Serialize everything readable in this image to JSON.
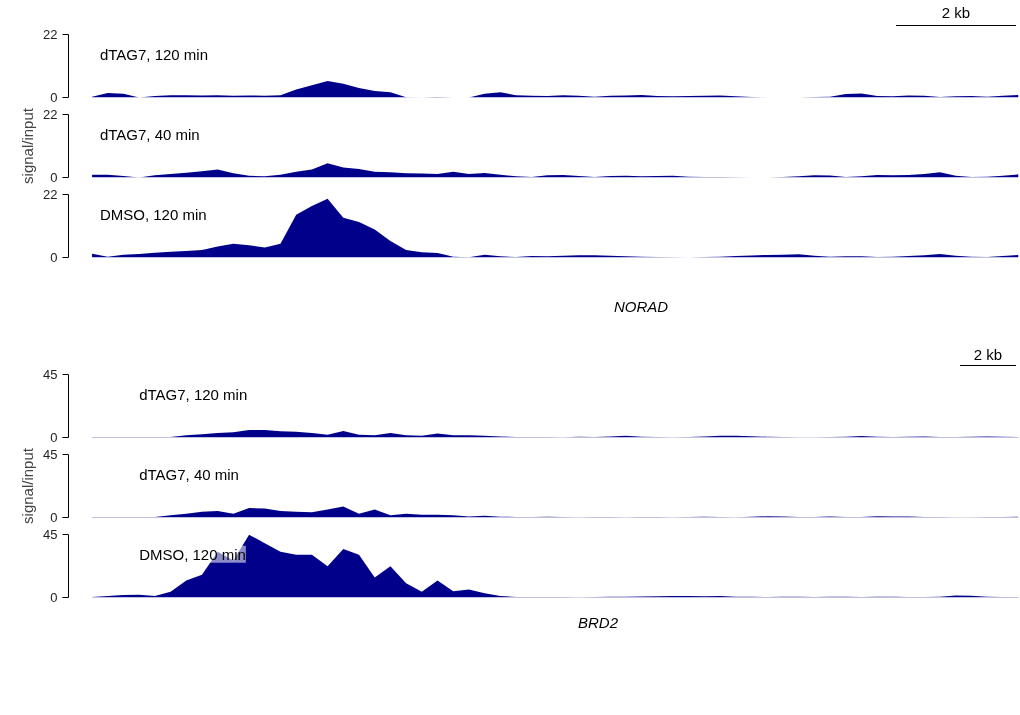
{
  "chart_data": [
    {
      "type": "area",
      "title": "dTAG7, 120 min",
      "categories": [
        null,
        null,
        null,
        null,
        null,
        null,
        null,
        null,
        null,
        null,
        null,
        null,
        null,
        null,
        null,
        null,
        null,
        null,
        null,
        null,
        null,
        null,
        null,
        null,
        null,
        null,
        null,
        null,
        null,
        null,
        null,
        null,
        null,
        null,
        null,
        null,
        null,
        null,
        null,
        null,
        null,
        null,
        null,
        null,
        null,
        null,
        null,
        null,
        null,
        null,
        null,
        null,
        null,
        null,
        null,
        null,
        null,
        null,
        null,
        null
      ],
      "ylim": [
        0,
        22
      ],
      "yticks": [
        0,
        22
      ],
      "tick_labels": "y",
      "grid": false,
      "annotations": [
        "2 kb"
      ],
      "series": [
        {
          "color": "#00008b",
          "values": [
            0.3,
            1.6,
            1.3,
            0,
            0.5,
            0.8,
            0.8,
            0.7,
            0.8,
            0.6,
            0.7,
            0.6,
            0.8,
            2.8,
            4.3,
            5.8,
            4.8,
            3.3,
            2.3,
            1.8,
            0.1,
            0,
            0.2,
            0,
            0,
            1.3,
            1.8,
            0.8,
            0.6,
            0.5,
            0.8,
            0.6,
            0.3,
            0.6,
            0.7,
            0.9,
            0.5,
            0.4,
            0.5,
            0.6,
            0.7,
            0.4,
            0.2,
            0,
            0,
            0,
            0.2,
            0.3,
            1.2,
            1.4,
            0.5,
            0.4,
            0.7,
            0.6,
            0.2,
            0.4,
            0.5,
            0.3,
            0.6,
            0.9
          ]
        }
      ]
    },
    {
      "type": "area",
      "title": "dTAG7, 40 min",
      "ylabel": "signal/input",
      "categories": [
        null,
        null,
        null,
        null,
        null,
        null,
        null,
        null,
        null,
        null,
        null,
        null,
        null,
        null,
        null,
        null,
        null,
        null,
        null,
        null,
        null,
        null,
        null,
        null,
        null,
        null,
        null,
        null,
        null,
        null,
        null,
        null,
        null,
        null,
        null,
        null,
        null,
        null,
        null,
        null,
        null,
        null,
        null,
        null,
        null,
        null,
        null,
        null,
        null,
        null,
        null,
        null,
        null,
        null,
        null,
        null,
        null,
        null,
        null,
        null
      ],
      "ylim": [
        0,
        22
      ],
      "yticks": [
        0,
        22
      ],
      "tick_labels": "y",
      "grid": false,
      "series": [
        {
          "color": "#00008b",
          "values": [
            1,
            1,
            0.5,
            0,
            0.8,
            1.2,
            1.7,
            2.2,
            2.8,
            1.5,
            0.6,
            0.4,
            1,
            2,
            2.8,
            5,
            3.5,
            3,
            2,
            1.8,
            1.5,
            1.4,
            1.2,
            2,
            1.2,
            1.6,
            1,
            0.4,
            0.2,
            0.8,
            0.9,
            0.5,
            0.2,
            0.5,
            0.6,
            0.4,
            0.5,
            0.6,
            0.3,
            0.2,
            0.2,
            0.1,
            0,
            0,
            0.2,
            0.4,
            0.8,
            0.7,
            0.2,
            0.4,
            0.9,
            0.8,
            0.9,
            1.2,
            1.8,
            0.6,
            0.2,
            0.3,
            0.6,
            1.1
          ]
        }
      ]
    },
    {
      "type": "area",
      "title": "DMSO, 120 min",
      "categories": [
        null,
        null,
        null,
        null,
        null,
        null,
        null,
        null,
        null,
        null,
        null,
        null,
        null,
        null,
        null,
        null,
        null,
        null,
        null,
        null,
        null,
        null,
        null,
        null,
        null,
        null,
        null,
        null,
        null,
        null,
        null,
        null,
        null,
        null,
        null,
        null,
        null,
        null,
        null,
        null,
        null,
        null,
        null,
        null,
        null,
        null,
        null,
        null,
        null,
        null,
        null,
        null,
        null,
        null,
        null,
        null,
        null,
        null,
        null,
        null
      ],
      "ylim": [
        0,
        22
      ],
      "yticks": [
        0,
        22
      ],
      "tick_labels": "y",
      "grid": false,
      "annotations": [
        "NORAD"
      ],
      "series": [
        {
          "color": "#00008b",
          "values": [
            1.3,
            0.3,
            1,
            1.2,
            1.7,
            2,
            2.3,
            2.6,
            3.8,
            4.8,
            4.3,
            3.5,
            4.8,
            14.9,
            18,
            20.5,
            13.9,
            12.4,
            9.8,
            5.8,
            2.6,
            1.8,
            1.6,
            0.3,
            0.1,
            1,
            0.4,
            0.2,
            0.5,
            0.4,
            0.6,
            0.8,
            0.8,
            0.6,
            0.4,
            0.3,
            0.2,
            0.1,
            0,
            0.2,
            0.3,
            0.5,
            0.7,
            0.9,
            1,
            1.1,
            0.6,
            0.3,
            0.4,
            0.4,
            0.2,
            0.3,
            0.5,
            0.8,
            1.2,
            0.6,
            0.3,
            0.2,
            0.5,
            0.9
          ]
        }
      ]
    },
    {
      "type": "area",
      "title": "dTAG7, 120 min",
      "categories": [
        null,
        null,
        null,
        null,
        null,
        null,
        null,
        null,
        null,
        null,
        null,
        null,
        null,
        null,
        null,
        null,
        null,
        null,
        null,
        null,
        null,
        null,
        null,
        null,
        null,
        null,
        null,
        null,
        null,
        null,
        null,
        null,
        null,
        null,
        null,
        null,
        null,
        null,
        null,
        null,
        null,
        null,
        null,
        null,
        null,
        null,
        null,
        null,
        null,
        null,
        null,
        null,
        null,
        null,
        null,
        null,
        null,
        null,
        null,
        null
      ],
      "ylim": [
        0,
        45
      ],
      "yticks": [
        0,
        45
      ],
      "tick_labels": "y",
      "grid": false,
      "annotations": [
        "2 kb"
      ],
      "series": [
        {
          "color": "#00008b",
          "values": [
            0.3,
            0.3,
            0.3,
            0.3,
            0.3,
            0.3,
            1.6,
            2.4,
            3.3,
            3.7,
            5.3,
            5.3,
            4.5,
            4.1,
            3.3,
            2,
            4.7,
            2,
            1.6,
            3.3,
            1.6,
            1.2,
            2.9,
            1.6,
            1.6,
            1.2,
            0.8,
            0.4,
            0.3,
            0.4,
            0.2,
            0.5,
            0.3,
            0.8,
            1.2,
            0.5,
            0.3,
            0.2,
            0.3,
            0.8,
            1.2,
            1.3,
            0.9,
            0.5,
            0.3,
            0.2,
            0.2,
            0.3,
            0.6,
            1,
            0.6,
            0.3,
            0.6,
            0.8,
            0.4,
            0.3,
            0.5,
            0.8,
            0.6,
            0.3
          ]
        }
      ]
    },
    {
      "type": "area",
      "title": "dTAG7, 40 min",
      "ylabel": "signal/input",
      "categories": [
        null,
        null,
        null,
        null,
        null,
        null,
        null,
        null,
        null,
        null,
        null,
        null,
        null,
        null,
        null,
        null,
        null,
        null,
        null,
        null,
        null,
        null,
        null,
        null,
        null,
        null,
        null,
        null,
        null,
        null,
        null,
        null,
        null,
        null,
        null,
        null,
        null,
        null,
        null,
        null,
        null,
        null,
        null,
        null,
        null,
        null,
        null,
        null,
        null,
        null,
        null,
        null,
        null,
        null,
        null,
        null,
        null,
        null,
        null,
        null
      ],
      "ylim": [
        0,
        45
      ],
      "yticks": [
        0,
        45
      ],
      "tick_labels": "y",
      "grid": false,
      "series": [
        {
          "color": "#00008b",
          "values": [
            0.3,
            0.3,
            0.3,
            0.3,
            0.3,
            1.6,
            2.7,
            4.1,
            4.7,
            2.7,
            6.7,
            6.5,
            4.7,
            4.1,
            3.7,
            5.7,
            7.8,
            2.7,
            5.7,
            1.6,
            2.7,
            2,
            2,
            1.6,
            0.8,
            1.2,
            0.6,
            0.4,
            0.3,
            0.5,
            0.3,
            0.2,
            0.4,
            0.3,
            0.2,
            0.3,
            0.4,
            0.2,
            0.3,
            0.6,
            0.3,
            0.2,
            0.5,
            0.9,
            0.7,
            0.3,
            0.3,
            0.8,
            0.4,
            0.3,
            0.9,
            0.7,
            0.8,
            0.4,
            0.3,
            0.2,
            0.2,
            0.3,
            0.3,
            0.6
          ]
        }
      ]
    },
    {
      "type": "area",
      "title": "DMSO, 120 min",
      "categories": [
        null,
        null,
        null,
        null,
        null,
        null,
        null,
        null,
        null,
        null,
        null,
        null,
        null,
        null,
        null,
        null,
        null,
        null,
        null,
        null,
        null,
        null,
        null,
        null,
        null,
        null,
        null,
        null,
        null,
        null,
        null,
        null,
        null,
        null,
        null,
        null,
        null,
        null,
        null,
        null,
        null,
        null,
        null,
        null,
        null,
        null,
        null,
        null,
        null,
        null,
        null,
        null,
        null,
        null,
        null,
        null,
        null,
        null,
        null,
        null
      ],
      "ylim": [
        0,
        45
      ],
      "yticks": [
        0,
        45
      ],
      "tick_labels": "y",
      "grid": false,
      "annotations": [
        "BRD2"
      ],
      "series": [
        {
          "color": "#00008b",
          "values": [
            0.4,
            1,
            1.7,
            2,
            1,
            4.1,
            12.2,
            16.3,
            32.7,
            26.5,
            44.9,
            38.8,
            32.7,
            30.6,
            30.6,
            22.4,
            34.7,
            30.6,
            14.3,
            22.4,
            10.2,
            4.1,
            12.2,
            4.5,
            5.7,
            3.1,
            1,
            0.4,
            0.3,
            0.3,
            0.4,
            0.2,
            0.4,
            0.5,
            0.6,
            0.7,
            0.9,
            1,
            1,
            0.9,
            1,
            0.6,
            0.5,
            0.4,
            0.5,
            0.5,
            0.4,
            0.6,
            0.5,
            0.4,
            0.5,
            0.6,
            0.4,
            0.3,
            0.5,
            1.4,
            1.2,
            0.6,
            0.3,
            0.3
          ]
        }
      ]
    }
  ]
}
